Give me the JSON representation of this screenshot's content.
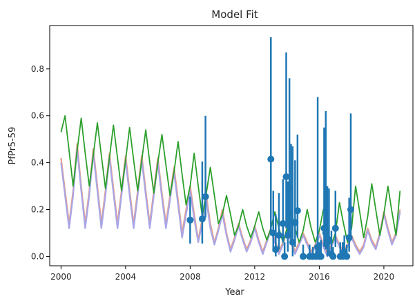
{
  "chart_data": {
    "type": "line",
    "title": "Model Fit",
    "xlabel": "Year",
    "ylabel": "PfPr5-59",
    "xlim": [
      1999.3,
      2021.8
    ],
    "ylim": [
      -0.04,
      0.985
    ],
    "xticks": [
      2000,
      2004,
      2008,
      2012,
      2016,
      2020
    ],
    "yticks": [
      0.0,
      0.2,
      0.4,
      0.6,
      0.8
    ],
    "xtick_labels": [
      "2000",
      "2004",
      "2008",
      "2012",
      "2016",
      "2020"
    ],
    "ytick_labels": [
      "0.0",
      "0.2",
      "0.4",
      "0.6",
      "0.8"
    ],
    "colors": {
      "model_a": "#e8a08c",
      "model_b": "#a9a6e6",
      "model_c": "#2ca02c",
      "observed": "#1f77b4"
    },
    "series": [
      {
        "key": "model_a",
        "kind": "line",
        "x": [
          2000,
          2000.25,
          2000.5,
          2000.75,
          2001,
          2001.25,
          2001.5,
          2001.75,
          2002,
          2002.25,
          2002.5,
          2002.75,
          2003,
          2003.25,
          2003.5,
          2003.75,
          2004,
          2004.25,
          2004.5,
          2004.75,
          2005,
          2005.25,
          2005.5,
          2005.75,
          2006,
          2006.25,
          2006.5,
          2006.75,
          2007,
          2007.25,
          2007.5,
          2007.75,
          2008,
          2008.25,
          2008.5,
          2008.75,
          2009,
          2009.25,
          2009.5,
          2009.75,
          2010,
          2010.25,
          2010.5,
          2010.75,
          2011,
          2011.25,
          2011.5,
          2011.75,
          2012,
          2012.25,
          2012.5,
          2012.75,
          2013,
          2013.25,
          2013.5,
          2013.75,
          2014,
          2014.25,
          2014.5,
          2014.75,
          2015,
          2015.25,
          2015.5,
          2015.75,
          2016,
          2016.25,
          2016.5,
          2016.75,
          2017,
          2017.25,
          2017.5,
          2017.75,
          2018,
          2018.25,
          2018.5,
          2018.75,
          2019,
          2019.25,
          2019.5,
          2019.75,
          2020,
          2020.25,
          2020.5,
          2020.75,
          2021
        ],
        "y": [
          0.42,
          0.28,
          0.14,
          0.28,
          0.48,
          0.3,
          0.14,
          0.28,
          0.46,
          0.3,
          0.14,
          0.28,
          0.44,
          0.29,
          0.14,
          0.28,
          0.43,
          0.28,
          0.14,
          0.28,
          0.43,
          0.28,
          0.14,
          0.28,
          0.42,
          0.27,
          0.14,
          0.26,
          0.38,
          0.24,
          0.1,
          0.2,
          0.3,
          0.18,
          0.07,
          0.16,
          0.26,
          0.14,
          0.06,
          0.12,
          0.2,
          0.1,
          0.03,
          0.08,
          0.14,
          0.08,
          0.03,
          0.07,
          0.13,
          0.07,
          0.02,
          0.07,
          0.12,
          0.07,
          0.02,
          0.06,
          0.12,
          0.07,
          0.02,
          0.06,
          0.1,
          0.06,
          0.02,
          0.05,
          0.1,
          0.05,
          0.01,
          0.05,
          0.09,
          0.05,
          0.02,
          0.05,
          0.09,
          0.05,
          0.02,
          0.05,
          0.12,
          0.07,
          0.04,
          0.1,
          0.19,
          0.12,
          0.06,
          0.1,
          0.2
        ]
      },
      {
        "key": "model_b",
        "kind": "line",
        "x": [
          2000,
          2000.25,
          2000.5,
          2000.75,
          2001,
          2001.25,
          2001.5,
          2001.75,
          2002,
          2002.25,
          2002.5,
          2002.75,
          2003,
          2003.25,
          2003.5,
          2003.75,
          2004,
          2004.25,
          2004.5,
          2004.75,
          2005,
          2005.25,
          2005.5,
          2005.75,
          2006,
          2006.25,
          2006.5,
          2006.75,
          2007,
          2007.25,
          2007.5,
          2007.75,
          2008,
          2008.25,
          2008.5,
          2008.75,
          2009,
          2009.25,
          2009.5,
          2009.75,
          2010,
          2010.25,
          2010.5,
          2010.75,
          2011,
          2011.25,
          2011.5,
          2011.75,
          2012,
          2012.25,
          2012.5,
          2012.75,
          2013,
          2013.25,
          2013.5,
          2013.75,
          2014,
          2014.25,
          2014.5,
          2014.75,
          2015,
          2015.25,
          2015.5,
          2015.75,
          2016,
          2016.25,
          2016.5,
          2016.75,
          2017,
          2017.25,
          2017.5,
          2017.75,
          2018,
          2018.25,
          2018.5,
          2018.75,
          2019,
          2019.25,
          2019.5,
          2019.75,
          2020,
          2020.25,
          2020.5,
          2020.75,
          2021
        ],
        "y": [
          0.4,
          0.26,
          0.12,
          0.26,
          0.46,
          0.28,
          0.12,
          0.26,
          0.44,
          0.28,
          0.12,
          0.26,
          0.42,
          0.27,
          0.12,
          0.26,
          0.41,
          0.26,
          0.12,
          0.26,
          0.41,
          0.26,
          0.12,
          0.26,
          0.4,
          0.25,
          0.12,
          0.24,
          0.36,
          0.22,
          0.08,
          0.18,
          0.28,
          0.16,
          0.06,
          0.14,
          0.24,
          0.12,
          0.05,
          0.11,
          0.18,
          0.09,
          0.02,
          0.07,
          0.13,
          0.07,
          0.02,
          0.06,
          0.12,
          0.06,
          0.01,
          0.06,
          0.11,
          0.06,
          0.01,
          0.05,
          0.11,
          0.06,
          0.01,
          0.05,
          0.09,
          0.05,
          0.01,
          0.04,
          0.09,
          0.04,
          0.0,
          0.04,
          0.08,
          0.04,
          0.01,
          0.04,
          0.08,
          0.04,
          0.01,
          0.04,
          0.11,
          0.06,
          0.03,
          0.09,
          0.18,
          0.11,
          0.05,
          0.09,
          0.19
        ]
      },
      {
        "key": "model_c",
        "kind": "line",
        "x": [
          2000,
          2000.25,
          2000.5,
          2000.75,
          2001,
          2001.25,
          2001.5,
          2001.75,
          2002,
          2002.25,
          2002.5,
          2002.75,
          2003,
          2003.25,
          2003.5,
          2003.75,
          2004,
          2004.25,
          2004.5,
          2004.75,
          2005,
          2005.25,
          2005.5,
          2005.75,
          2006,
          2006.25,
          2006.5,
          2006.75,
          2007,
          2007.25,
          2007.5,
          2007.75,
          2008,
          2008.25,
          2008.5,
          2008.75,
          2009,
          2009.25,
          2009.5,
          2009.75,
          2010,
          2010.25,
          2010.5,
          2010.75,
          2011,
          2011.25,
          2011.5,
          2011.75,
          2012,
          2012.25,
          2012.5,
          2012.75,
          2013,
          2013.25,
          2013.5,
          2013.75,
          2014,
          2014.25,
          2014.5,
          2014.75,
          2015,
          2015.25,
          2015.5,
          2015.75,
          2016,
          2016.25,
          2016.5,
          2016.75,
          2017,
          2017.25,
          2017.5,
          2017.75,
          2018,
          2018.25,
          2018.5,
          2018.75,
          2019,
          2019.25,
          2019.5,
          2019.75,
          2020,
          2020.25,
          2020.5,
          2020.75,
          2021
        ],
        "y": [
          0.53,
          0.6,
          0.45,
          0.3,
          0.45,
          0.59,
          0.44,
          0.3,
          0.43,
          0.57,
          0.43,
          0.29,
          0.42,
          0.56,
          0.42,
          0.28,
          0.41,
          0.55,
          0.41,
          0.28,
          0.41,
          0.54,
          0.4,
          0.27,
          0.4,
          0.52,
          0.39,
          0.26,
          0.36,
          0.49,
          0.35,
          0.22,
          0.3,
          0.44,
          0.3,
          0.17,
          0.27,
          0.38,
          0.26,
          0.14,
          0.18,
          0.26,
          0.18,
          0.09,
          0.13,
          0.2,
          0.13,
          0.08,
          0.13,
          0.19,
          0.12,
          0.07,
          0.12,
          0.19,
          0.12,
          0.06,
          0.12,
          0.2,
          0.12,
          0.06,
          0.11,
          0.2,
          0.12,
          0.06,
          0.11,
          0.2,
          0.12,
          0.05,
          0.1,
          0.23,
          0.14,
          0.06,
          0.12,
          0.3,
          0.19,
          0.08,
          0.17,
          0.31,
          0.2,
          0.09,
          0.18,
          0.3,
          0.19,
          0.09,
          0.28
        ]
      },
      {
        "key": "observed",
        "kind": "errorbar",
        "points": [
          {
            "x": 2008.0,
            "y": 0.155,
            "lo": 0.055,
            "hi": 0.255
          },
          {
            "x": 2008.75,
            "y": 0.16,
            "lo": 0.055,
            "hi": 0.405
          },
          {
            "x": 2008.95,
            "y": 0.255,
            "lo": 0.165,
            "hi": 0.6
          },
          {
            "x": 2013.0,
            "y": 0.415,
            "lo": 0.09,
            "hi": 0.935
          },
          {
            "x": 2013.15,
            "y": 0.1,
            "lo": 0.02,
            "hi": 0.28
          },
          {
            "x": 2013.3,
            "y": 0.03,
            "lo": 0.0,
            "hi": 0.18
          },
          {
            "x": 2013.5,
            "y": 0.09,
            "lo": 0.03,
            "hi": 0.27
          },
          {
            "x": 2013.75,
            "y": 0.14,
            "lo": 0.06,
            "hi": 0.33
          },
          {
            "x": 2013.85,
            "y": 0.0,
            "lo": 0.0,
            "hi": 0.06
          },
          {
            "x": 2013.95,
            "y": 0.34,
            "lo": 0.12,
            "hi": 0.87
          },
          {
            "x": 2014.05,
            "y": 0.09,
            "lo": 0.02,
            "hi": 0.32
          },
          {
            "x": 2014.15,
            "y": 0.29,
            "lo": 0.1,
            "hi": 0.76
          },
          {
            "x": 2014.25,
            "y": 0.15,
            "lo": 0.06,
            "hi": 0.48
          },
          {
            "x": 2014.35,
            "y": 0.06,
            "lo": 0.0,
            "hi": 0.47
          },
          {
            "x": 2014.5,
            "y": 0.145,
            "lo": 0.04,
            "hi": 0.41
          },
          {
            "x": 2014.65,
            "y": 0.195,
            "lo": 0.08,
            "hi": 0.52
          },
          {
            "x": 2015.0,
            "y": 0.0,
            "lo": 0.0,
            "hi": 0.05
          },
          {
            "x": 2015.4,
            "y": 0.0,
            "lo": 0.0,
            "hi": 0.05
          },
          {
            "x": 2015.6,
            "y": 0.0,
            "lo": 0.0,
            "hi": 0.04
          },
          {
            "x": 2015.8,
            "y": 0.0,
            "lo": 0.0,
            "hi": 0.05
          },
          {
            "x": 2015.9,
            "y": 0.04,
            "lo": 0.0,
            "hi": 0.68
          },
          {
            "x": 2016.0,
            "y": 0.0,
            "lo": 0.0,
            "hi": 0.06
          },
          {
            "x": 2016.1,
            "y": 0.0,
            "lo": 0.0,
            "hi": 0.07
          },
          {
            "x": 2016.3,
            "y": 0.12,
            "lo": 0.04,
            "hi": 0.55
          },
          {
            "x": 2016.4,
            "y": 0.1,
            "lo": 0.03,
            "hi": 0.62
          },
          {
            "x": 2016.5,
            "y": 0.06,
            "lo": 0.0,
            "hi": 0.3
          },
          {
            "x": 2016.6,
            "y": 0.07,
            "lo": 0.01,
            "hi": 0.29
          },
          {
            "x": 2016.75,
            "y": 0.01,
            "lo": 0.0,
            "hi": 0.11
          },
          {
            "x": 2016.85,
            "y": 0.0,
            "lo": 0.0,
            "hi": 0.04
          },
          {
            "x": 2017.0,
            "y": 0.12,
            "lo": 0.04,
            "hi": 0.28
          },
          {
            "x": 2017.3,
            "y": 0.0,
            "lo": 0.0,
            "hi": 0.06
          },
          {
            "x": 2017.45,
            "y": 0.0,
            "lo": 0.0,
            "hi": 0.06
          },
          {
            "x": 2017.55,
            "y": 0.02,
            "lo": 0.0,
            "hi": 0.09
          },
          {
            "x": 2017.7,
            "y": 0.0,
            "lo": 0.0,
            "hi": 0.05
          },
          {
            "x": 2017.85,
            "y": 0.08,
            "lo": 0.02,
            "hi": 0.25
          },
          {
            "x": 2017.95,
            "y": 0.2,
            "lo": 0.07,
            "hi": 0.61
          }
        ]
      }
    ],
    "grid": false,
    "legend": "none"
  }
}
